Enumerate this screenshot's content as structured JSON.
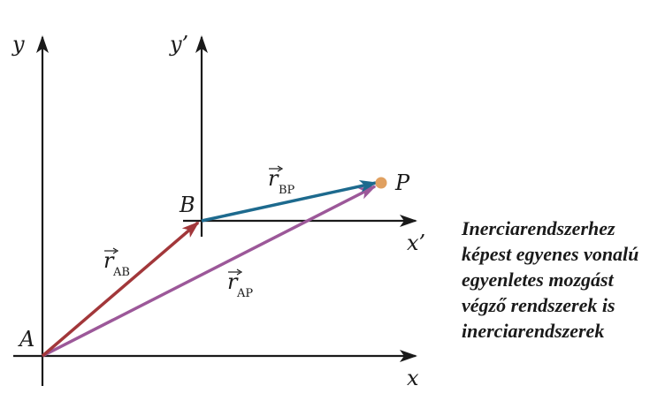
{
  "axes": {
    "y": "y",
    "x": "x",
    "y_prime": "y’",
    "x_prime": "x’"
  },
  "points": {
    "A": "A",
    "B": "B",
    "P": "P"
  },
  "vectors": {
    "r_AB": {
      "symbol": "r",
      "subscript": "AB",
      "color": "#a2373a"
    },
    "r_BP": {
      "symbol": "r",
      "subscript": "BP",
      "color": "#1d6a8e"
    },
    "r_AP": {
      "symbol": "r",
      "subscript": "AP",
      "color": "#9c5899"
    }
  },
  "point_P_color": "#e0a060",
  "note_lines": [
    "Inerciarendszerhez",
    "képest egyenes vonalú",
    "egyenletes mozgást",
    "végző rendszerek is",
    "inerciarendszerek"
  ]
}
